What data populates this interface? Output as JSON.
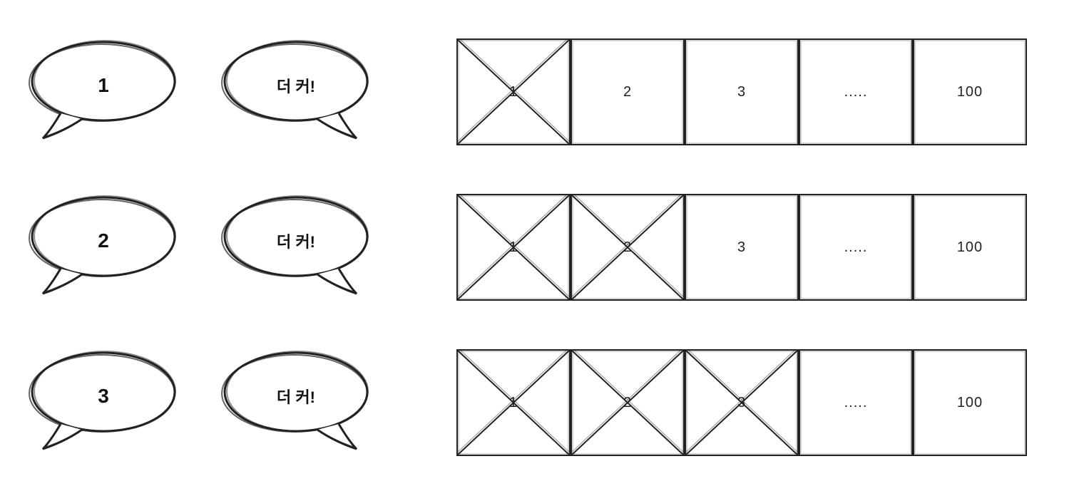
{
  "style": {
    "background_color": "#ffffff",
    "stroke_color": "#222222",
    "text_color": "#222222",
    "cell_border_width": 2,
    "bubble_stroke_width": 3,
    "font_family": "Comic Sans MS / handwritten",
    "guess_fontsize": 28,
    "response_fontsize": 22,
    "cell_fontsize": 20
  },
  "rows": [
    {
      "guess": "1",
      "response": "더 커!",
      "cells": [
        {
          "label": "1",
          "crossed": true
        },
        {
          "label": "2",
          "crossed": false
        },
        {
          "label": "3",
          "crossed": false
        },
        {
          "label": ".....",
          "crossed": false
        },
        {
          "label": "100",
          "crossed": false
        }
      ],
      "guess_tail": "left",
      "response_tail": "right"
    },
    {
      "guess": "2",
      "response": "더 커!",
      "cells": [
        {
          "label": "1",
          "crossed": true
        },
        {
          "label": "2",
          "crossed": true
        },
        {
          "label": "3",
          "crossed": false
        },
        {
          "label": ".....",
          "crossed": false
        },
        {
          "label": "100",
          "crossed": false
        }
      ],
      "guess_tail": "left",
      "response_tail": "right"
    },
    {
      "guess": "3",
      "response": "더 커!",
      "cells": [
        {
          "label": "1",
          "crossed": true
        },
        {
          "label": "2",
          "crossed": true
        },
        {
          "label": "3",
          "crossed": true
        },
        {
          "label": ".....",
          "crossed": false
        },
        {
          "label": "100",
          "crossed": false
        }
      ],
      "guess_tail": "left",
      "response_tail": "right"
    }
  ]
}
